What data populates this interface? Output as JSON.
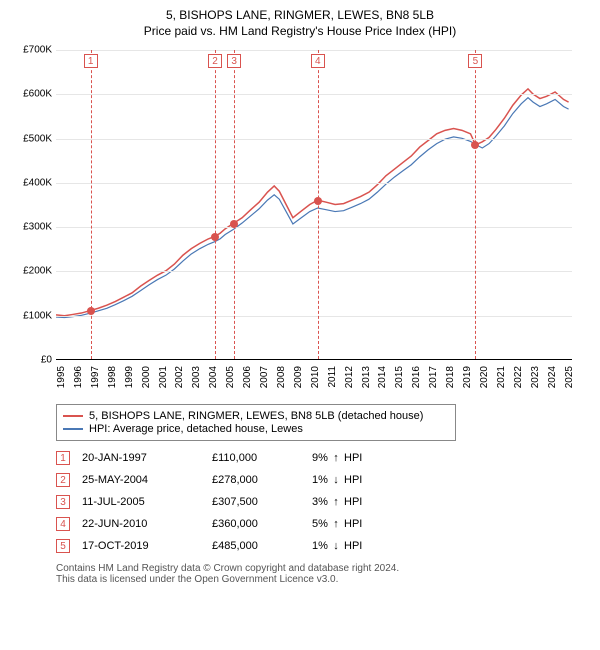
{
  "title": {
    "line1": "5, BISHOPS LANE, RINGMER, LEWES, BN8 5LB",
    "line2": "Price paid vs. HM Land Registry's House Price Index (HPI)"
  },
  "chart": {
    "type": "line",
    "background_color": "#ffffff",
    "grid_color": "#e6e6e6",
    "xlim": [
      1995,
      2025.5
    ],
    "ylim": [
      0,
      700000
    ],
    "ytick_step": 100000,
    "ytick_labels": [
      "£0",
      "£100K",
      "£200K",
      "£300K",
      "£400K",
      "£500K",
      "£600K",
      "£700K"
    ],
    "xticks": [
      1995,
      1996,
      1997,
      1998,
      1999,
      2000,
      2001,
      2002,
      2003,
      2004,
      2005,
      2006,
      2007,
      2008,
      2009,
      2010,
      2011,
      2012,
      2013,
      2014,
      2015,
      2016,
      2017,
      2018,
      2019,
      2020,
      2021,
      2022,
      2023,
      2024,
      2025
    ],
    "series": [
      {
        "name": "subject",
        "label": "5, BISHOPS LANE, RINGMER, LEWES, BN8 5LB (detached house)",
        "color": "#d9534f",
        "line_width": 1.5,
        "points": [
          [
            1995.0,
            100000
          ],
          [
            1995.5,
            98000
          ],
          [
            1996.0,
            101000
          ],
          [
            1996.5,
            104000
          ],
          [
            1997.05,
            110000
          ],
          [
            1997.5,
            115000
          ],
          [
            1998.0,
            122000
          ],
          [
            1998.5,
            130000
          ],
          [
            1999.0,
            140000
          ],
          [
            1999.5,
            150000
          ],
          [
            2000.0,
            165000
          ],
          [
            2000.5,
            178000
          ],
          [
            2001.0,
            190000
          ],
          [
            2001.5,
            200000
          ],
          [
            2002.0,
            215000
          ],
          [
            2002.5,
            235000
          ],
          [
            2003.0,
            250000
          ],
          [
            2003.5,
            262000
          ],
          [
            2004.0,
            272000
          ],
          [
            2004.4,
            278000
          ],
          [
            2004.7,
            285000
          ],
          [
            2005.0,
            295000
          ],
          [
            2005.5,
            307500
          ],
          [
            2006.0,
            320000
          ],
          [
            2006.5,
            338000
          ],
          [
            2007.0,
            355000
          ],
          [
            2007.5,
            378000
          ],
          [
            2007.9,
            392000
          ],
          [
            2008.2,
            380000
          ],
          [
            2008.6,
            350000
          ],
          [
            2009.0,
            320000
          ],
          [
            2009.5,
            335000
          ],
          [
            2010.0,
            350000
          ],
          [
            2010.47,
            360000
          ],
          [
            2011.0,
            355000
          ],
          [
            2011.5,
            350000
          ],
          [
            2012.0,
            352000
          ],
          [
            2012.5,
            360000
          ],
          [
            2013.0,
            368000
          ],
          [
            2013.5,
            378000
          ],
          [
            2014.0,
            395000
          ],
          [
            2014.5,
            415000
          ],
          [
            2015.0,
            430000
          ],
          [
            2015.5,
            445000
          ],
          [
            2016.0,
            460000
          ],
          [
            2016.5,
            480000
          ],
          [
            2017.0,
            495000
          ],
          [
            2017.5,
            510000
          ],
          [
            2018.0,
            518000
          ],
          [
            2018.5,
            522000
          ],
          [
            2019.0,
            518000
          ],
          [
            2019.5,
            510000
          ],
          [
            2019.8,
            485000
          ],
          [
            2020.2,
            492000
          ],
          [
            2020.6,
            502000
          ],
          [
            2021.0,
            520000
          ],
          [
            2021.5,
            545000
          ],
          [
            2022.0,
            575000
          ],
          [
            2022.5,
            598000
          ],
          [
            2022.9,
            612000
          ],
          [
            2023.2,
            600000
          ],
          [
            2023.6,
            590000
          ],
          [
            2024.0,
            595000
          ],
          [
            2024.5,
            605000
          ],
          [
            2025.0,
            588000
          ],
          [
            2025.3,
            582000
          ]
        ]
      },
      {
        "name": "hpi",
        "label": "HPI: Average price, detached house, Lewes",
        "color": "#4a78b5",
        "line_width": 1.2,
        "points": [
          [
            1995.0,
            95000
          ],
          [
            1995.5,
            94000
          ],
          [
            1996.0,
            96000
          ],
          [
            1996.5,
            99000
          ],
          [
            1997.05,
            104000
          ],
          [
            1997.5,
            109000
          ],
          [
            1998.0,
            115000
          ],
          [
            1998.5,
            123000
          ],
          [
            1999.0,
            132000
          ],
          [
            1999.5,
            142000
          ],
          [
            2000.0,
            155000
          ],
          [
            2000.5,
            168000
          ],
          [
            2001.0,
            180000
          ],
          [
            2001.5,
            190000
          ],
          [
            2002.0,
            204000
          ],
          [
            2002.5,
            222000
          ],
          [
            2003.0,
            238000
          ],
          [
            2003.5,
            250000
          ],
          [
            2004.0,
            260000
          ],
          [
            2004.4,
            266000
          ],
          [
            2004.7,
            272000
          ],
          [
            2005.0,
            282000
          ],
          [
            2005.5,
            294000
          ],
          [
            2006.0,
            308000
          ],
          [
            2006.5,
            324000
          ],
          [
            2007.0,
            340000
          ],
          [
            2007.5,
            360000
          ],
          [
            2007.9,
            372000
          ],
          [
            2008.2,
            362000
          ],
          [
            2008.6,
            334000
          ],
          [
            2009.0,
            306000
          ],
          [
            2009.5,
            320000
          ],
          [
            2010.0,
            334000
          ],
          [
            2010.47,
            342000
          ],
          [
            2011.0,
            338000
          ],
          [
            2011.5,
            334000
          ],
          [
            2012.0,
            336000
          ],
          [
            2012.5,
            344000
          ],
          [
            2013.0,
            352000
          ],
          [
            2013.5,
            362000
          ],
          [
            2014.0,
            378000
          ],
          [
            2014.5,
            396000
          ],
          [
            2015.0,
            412000
          ],
          [
            2015.5,
            426000
          ],
          [
            2016.0,
            440000
          ],
          [
            2016.5,
            458000
          ],
          [
            2017.0,
            474000
          ],
          [
            2017.5,
            488000
          ],
          [
            2018.0,
            498000
          ],
          [
            2018.5,
            503000
          ],
          [
            2019.0,
            500000
          ],
          [
            2019.5,
            493000
          ],
          [
            2019.8,
            486000
          ],
          [
            2020.2,
            478000
          ],
          [
            2020.6,
            488000
          ],
          [
            2021.0,
            505000
          ],
          [
            2021.5,
            528000
          ],
          [
            2022.0,
            556000
          ],
          [
            2022.5,
            578000
          ],
          [
            2022.9,
            592000
          ],
          [
            2023.2,
            582000
          ],
          [
            2023.6,
            572000
          ],
          [
            2024.0,
            578000
          ],
          [
            2024.5,
            588000
          ],
          [
            2025.0,
            572000
          ],
          [
            2025.3,
            566000
          ]
        ]
      }
    ],
    "transaction_markers": [
      {
        "n": "1",
        "year": 1997.05,
        "value": 110000
      },
      {
        "n": "2",
        "year": 2004.4,
        "value": 278000
      },
      {
        "n": "3",
        "year": 2005.53,
        "value": 307500
      },
      {
        "n": "4",
        "year": 2010.47,
        "value": 360000
      },
      {
        "n": "5",
        "year": 2019.79,
        "value": 485000
      }
    ],
    "marker_line_color": "#d9534f",
    "marker_dot_color": "#d9534f"
  },
  "transactions": [
    {
      "n": "1",
      "date": "20-JAN-1997",
      "price": "£110,000",
      "delta": "9%",
      "dir": "up",
      "dir_glyph": "↑",
      "suffix": "HPI"
    },
    {
      "n": "2",
      "date": "25-MAY-2004",
      "price": "£278,000",
      "delta": "1%",
      "dir": "down",
      "dir_glyph": "↓",
      "suffix": "HPI"
    },
    {
      "n": "3",
      "date": "11-JUL-2005",
      "price": "£307,500",
      "delta": "3%",
      "dir": "up",
      "dir_glyph": "↑",
      "suffix": "HPI"
    },
    {
      "n": "4",
      "date": "22-JUN-2010",
      "price": "£360,000",
      "delta": "5%",
      "dir": "up",
      "dir_glyph": "↑",
      "suffix": "HPI"
    },
    {
      "n": "5",
      "date": "17-OCT-2019",
      "price": "£485,000",
      "delta": "1%",
      "dir": "down",
      "dir_glyph": "↓",
      "suffix": "HPI"
    }
  ],
  "footer": {
    "line1": "Contains HM Land Registry data © Crown copyright and database right 2024.",
    "line2": "This data is licensed under the Open Government Licence v3.0."
  }
}
